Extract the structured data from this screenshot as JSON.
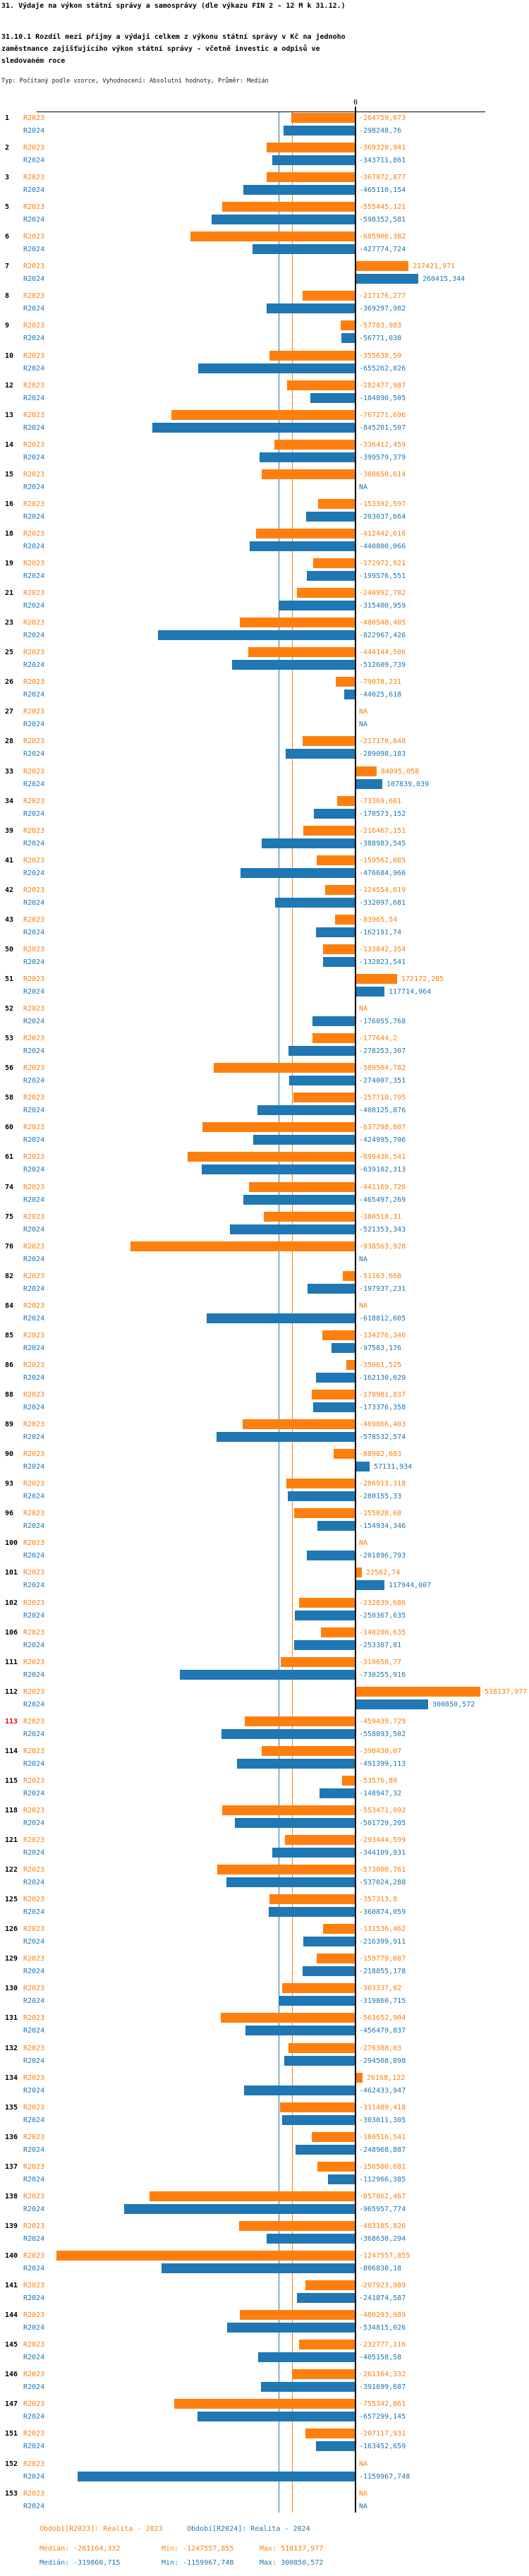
{
  "header": {
    "title": "31. Výdaje na výkon státní správy a samosprávy (dle výkazu FIN 2 - 12 M k 31.12.)",
    "subtitle": "31.10.1 Rozdíl mezi příjmy a výdaji celkem z výkonu státní správy v Kč na jednoho zaměstnance zajišťujícího výkon státní správy - včetně investic a odpisů ve sledovaném roce",
    "meta": "Typ: Počítaný podle vzorce, Vyhodnocení: Absolutní hodnoty, Průměr: Medián"
  },
  "chart_data": {
    "type": "bar",
    "orientation": "horizontal",
    "value_unit": "Kč (Czech decimal comma format)",
    "axis": {
      "zero_label": "0",
      "approx_domain": [
        -1265000,
        550000
      ],
      "grid": false
    },
    "series": [
      {
        "name": "R2023",
        "color": "#ff7f0e",
        "period": "Realita - 2023"
      },
      {
        "name": "R2024",
        "color": "#1f77b4",
        "period": "Realita - 2024"
      }
    ],
    "medians": {
      "r2023": "-261164,332",
      "r2024": "-319860,715"
    },
    "rows": [
      {
        "n": "1",
        "r2023": "-264759,073",
        "r2024": "-298248,76"
      },
      {
        "n": "2",
        "r2023": "-369320,941",
        "r2024": "-343711,861"
      },
      {
        "n": "3",
        "r2023": "-367872,877",
        "r2024": "-465110,154"
      },
      {
        "n": "5",
        "r2023": "-555445,121",
        "r2024": "-598352,581"
      },
      {
        "n": "6",
        "r2023": "-685906,382",
        "r2024": "-427774,724"
      },
      {
        "n": "7",
        "r2023": "217421,971",
        "r2024": "260415,344"
      },
      {
        "n": "8",
        "r2023": "-217176,277",
        "r2024": "-369297,982"
      },
      {
        "n": "9",
        "r2023": "-57783,983",
        "r2024": "-56771,038"
      },
      {
        "n": "10",
        "r2023": "-355638,59",
        "r2024": "-655262,026"
      },
      {
        "n": "12",
        "r2023": "-282477,987",
        "r2024": "-184890,505"
      },
      {
        "n": "13",
        "r2023": "-767271,696",
        "r2024": "-845201,507"
      },
      {
        "n": "14",
        "r2023": "-336412,459",
        "r2024": "-399579,379"
      },
      {
        "n": "15",
        "r2023": "-388650,614",
        "r2024": "NA"
      },
      {
        "n": "16",
        "r2023": "-153392,597",
        "r2024": "-203037,664"
      },
      {
        "n": "18",
        "r2023": "-412442,616",
        "r2024": "-440800,066"
      },
      {
        "n": "19",
        "r2023": "-172972,921",
        "r2024": "-199576,551"
      },
      {
        "n": "21",
        "r2023": "-240992,782",
        "r2024": "-315400,959"
      },
      {
        "n": "23",
        "r2023": "-480548,405",
        "r2024": "-822967,426"
      },
      {
        "n": "25",
        "r2023": "-444144,506",
        "r2024": "-512609,739"
      },
      {
        "n": "26",
        "r2023": "-79078,231",
        "r2024": "-44025,618"
      },
      {
        "n": "27",
        "r2023": "NA",
        "r2024": "NA"
      },
      {
        "n": "28",
        "r2023": "-217170,648",
        "r2024": "-289098,183"
      },
      {
        "n": "33",
        "r2023": "84095,058",
        "r2024": "107839,039"
      },
      {
        "n": "34",
        "r2023": "-73369,661",
        "r2024": "-170573,152"
      },
      {
        "n": "39",
        "r2023": "-216467,151",
        "r2024": "-388983,545"
      },
      {
        "n": "41",
        "r2023": "-159562,085",
        "r2024": "-476684,966"
      },
      {
        "n": "42",
        "r2023": "-124554,619",
        "r2024": "-332097,681"
      },
      {
        "n": "43",
        "r2023": "-83965,54",
        "r2024": "-162191,74"
      },
      {
        "n": "50",
        "r2023": "-133842,354",
        "r2024": "-132823,541"
      },
      {
        "n": "51",
        "r2023": "172172,285",
        "r2024": "117714,964"
      },
      {
        "n": "52",
        "r2023": "NA",
        "r2024": "-176055,768"
      },
      {
        "n": "53",
        "r2023": "-177644,2",
        "r2024": "-278253,307"
      },
      {
        "n": "56",
        "r2023": "-589504,782",
        "r2024": "-274007,351"
      },
      {
        "n": "58",
        "r2023": "-257710,795",
        "r2024": "-408125,876"
      },
      {
        "n": "60",
        "r2023": "-637298,807",
        "r2024": "-424995,706"
      },
      {
        "n": "61",
        "r2023": "-699436,541",
        "r2024": "-639102,313"
      },
      {
        "n": "74",
        "r2023": "-441169,726",
        "r2024": "-465497,269"
      },
      {
        "n": "75",
        "r2023": "-380518,31",
        "r2024": "-521353,343"
      },
      {
        "n": "76",
        "r2023": "-938563,928",
        "r2024": "NA"
      },
      {
        "n": "82",
        "r2023": "-51163,668",
        "r2024": "-197937,231"
      },
      {
        "n": "84",
        "r2023": "NA",
        "r2024": "-618812,605"
      },
      {
        "n": "85",
        "r2023": "-134276,346",
        "r2024": "-97583,176"
      },
      {
        "n": "86",
        "r2023": "-35061,525",
        "r2024": "-162130,629"
      },
      {
        "n": "88",
        "r2023": "-178981,837",
        "r2024": "-173376,358"
      },
      {
        "n": "89",
        "r2023": "-469866,403",
        "r2024": "-578532,574"
      },
      {
        "n": "90",
        "r2023": "-88982,683",
        "r2024": "57131,934"
      },
      {
        "n": "93",
        "r2023": "-286913,318",
        "r2024": "-280155,33"
      },
      {
        "n": "96",
        "r2023": "-255028,68",
        "r2024": "-154934,346"
      },
      {
        "n": "100",
        "r2023": "NA",
        "r2024": "-201896,793"
      },
      {
        "n": "101",
        "r2023": "22562,74",
        "r2024": "117944,007"
      },
      {
        "n": "102",
        "r2023": "-232039,686",
        "r2024": "-250367,635"
      },
      {
        "n": "106",
        "r2023": "-140200,635",
        "r2024": "-253387,81"
      },
      {
        "n": "111",
        "r2023": "-310658,77",
        "r2024": "-730255,916"
      },
      {
        "n": "112",
        "r2023": "518137,977",
        "r2024": "300850,572"
      },
      {
        "n": "113",
        "red": true,
        "r2023": "-459439,729",
        "r2024": "-558893,502"
      },
      {
        "n": "114",
        "r2023": "-390430,07",
        "r2024": "-491399,113"
      },
      {
        "n": "115",
        "r2023": "-53576,89",
        "r2024": "-148947,32"
      },
      {
        "n": "118",
        "r2023": "-553471,092",
        "r2024": "-501729,205"
      },
      {
        "n": "121",
        "r2023": "-293444,599",
        "r2024": "-344109,931"
      },
      {
        "n": "122",
        "r2023": "-573800,761",
        "r2024": "-537024,288"
      },
      {
        "n": "125",
        "r2023": "-357313,8",
        "r2024": "-360874,059"
      },
      {
        "n": "126",
        "r2023": "-131536,462",
        "r2024": "-216399,911"
      },
      {
        "n": "129",
        "r2023": "-159779,087",
        "r2024": "-218855,178"
      },
      {
        "n": "130",
        "r2023": "-303337,92",
        "r2024": "-319860,715"
      },
      {
        "n": "131",
        "r2023": "-561652,904",
        "r2024": "-456479,837"
      },
      {
        "n": "132",
        "r2023": "-276388,03",
        "r2024": "-294508,898"
      },
      {
        "n": "134",
        "r2023": "26168,122",
        "r2024": "-462433,947"
      },
      {
        "n": "135",
        "r2023": "-311489,418",
        "r2024": "-303011,305"
      },
      {
        "n": "136",
        "r2023": "-180516,541",
        "r2024": "-248968,887"
      },
      {
        "n": "137",
        "r2023": "-156500,681",
        "r2024": "-112966,385"
      },
      {
        "n": "138",
        "r2023": "-857862,467",
        "r2024": "-965957,774"
      },
      {
        "n": "139",
        "r2023": "-483185,826",
        "r2024": "-368630,294"
      },
      {
        "n": "140",
        "r2023": "-1247557,855",
        "r2024": "-806830,18"
      },
      {
        "n": "141",
        "r2023": "-207923,989",
        "r2024": "-241874,587"
      },
      {
        "n": "144",
        "r2023": "-480293,989",
        "r2024": "-534815,026"
      },
      {
        "n": "145",
        "r2023": "-232777,116",
        "r2024": "-405158,58"
      },
      {
        "n": "146",
        "r2023": "-261164,332",
        "r2024": "-391699,687"
      },
      {
        "n": "147",
        "r2023": "-755342,861",
        "r2024": "-657299,145"
      },
      {
        "n": "151",
        "r2023": "-207117,931",
        "r2024": "-163452,659"
      },
      {
        "n": "152",
        "r2023": "NA",
        "r2024": "-1159967,748"
      },
      {
        "n": "153",
        "r2023": "NA",
        "r2024": "NA"
      }
    ]
  },
  "footer": {
    "r2023": {
      "period": "Období[R2023]: Realita - 2023",
      "median": "Medián: -261164,332",
      "min": "Min: -1247557,855",
      "max": "Max: 518137,977"
    },
    "r2024": {
      "period": "Období[R2024]: Realita - 2024",
      "median": "Medián: -319860,715",
      "min": "Min: -1159967,748",
      "max": "Max: 300850,572"
    }
  }
}
